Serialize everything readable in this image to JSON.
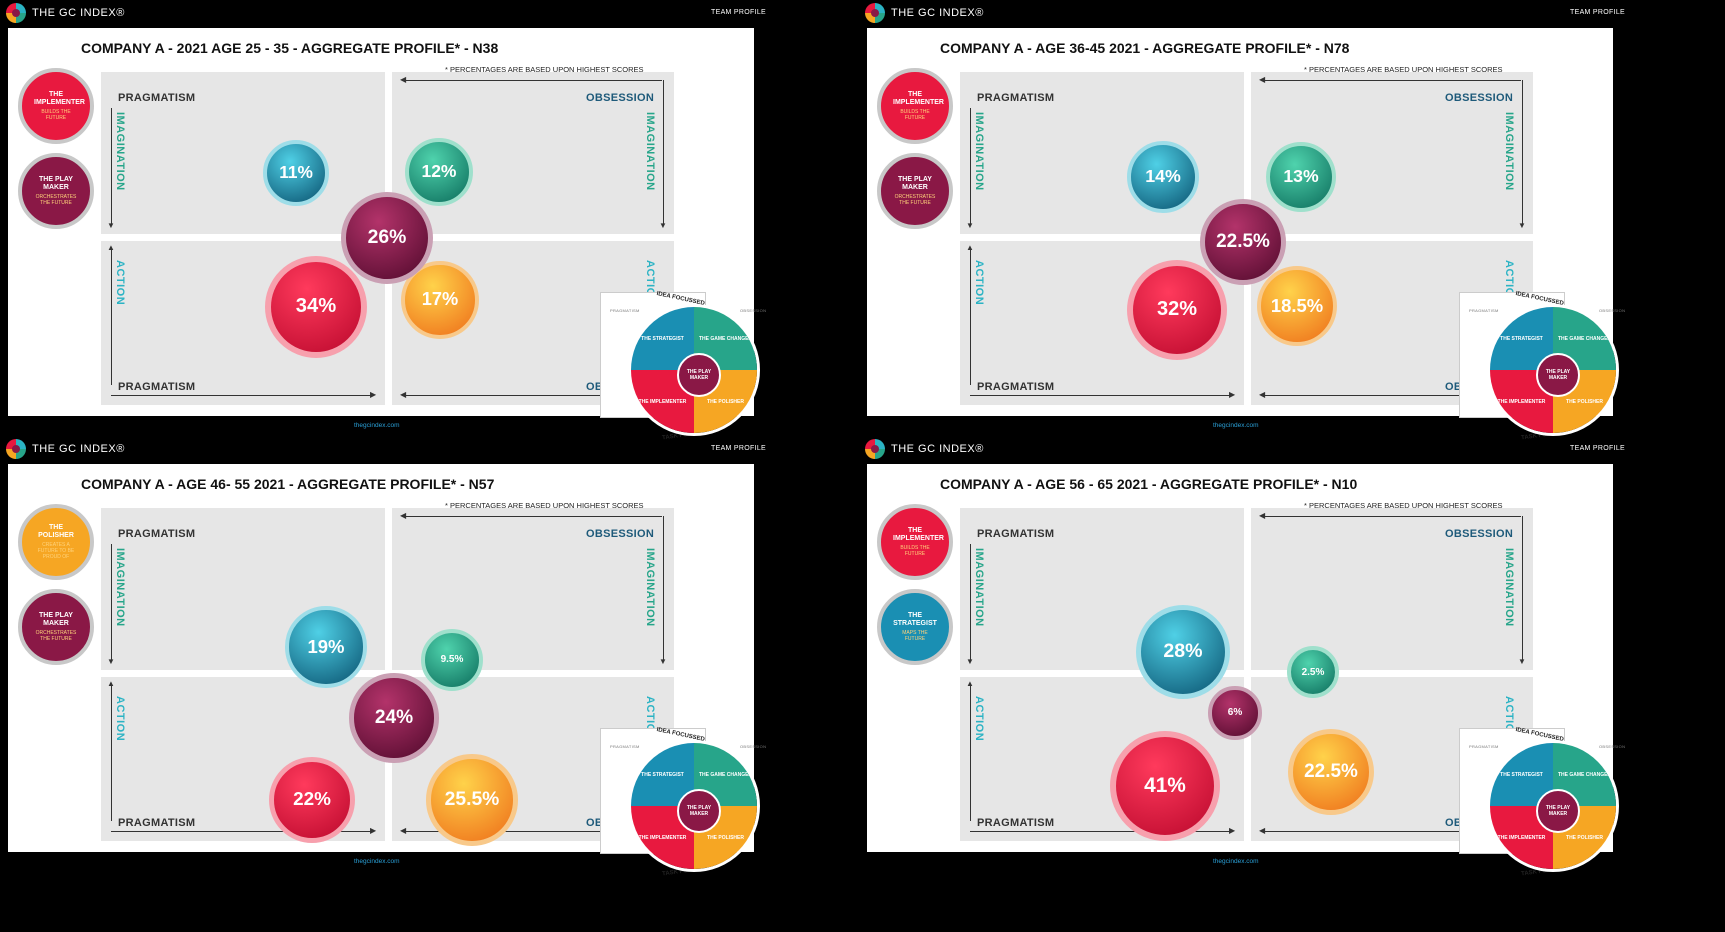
{
  "colors": {
    "implementer": "#e8193f",
    "playmaker": "#8a1846",
    "strategist": "#1a8fb3",
    "gamechanger": "#27a58a",
    "polisher": "#f6a623"
  },
  "common": {
    "logo_text": "THE GC INDEX®",
    "header_right": "TEAM PROFILE",
    "note": "* PERCENTAGES ARE BASED UPON HIGHEST SCORES",
    "footer": "thegcindex.com",
    "q_pragmatism": "PRAGMATISM",
    "q_obsession": "OBSESSION",
    "q_imagination": "IMAGINATION",
    "q_action": "ACTION",
    "wheel_top": "IDEA FOCUSSED",
    "wheel_bottom": "TASK FOCUSSED",
    "wheel_side": "PRAGMATISM",
    "wheel_side2": "OBSESSION",
    "wheel_strategist": "THE STRATEGIST",
    "wheel_gamechanger": "THE GAME CHANGER",
    "wheel_implementer": "THE IMPLEMENTER",
    "wheel_polisher": "THE POLISHER",
    "wheel_playmaker": "THE PLAY MAKER"
  },
  "slides": [
    {
      "title": "COMPANY A -  2021 AGE 25 - 35  - AGGREGATE PROFILE* - N38",
      "legend": [
        {
          "name": "THE IMPLEMENTER",
          "tag": "BUILDS THE FUTURE",
          "profile": "implementer"
        },
        {
          "name": "THE PLAY MAKER",
          "tag": "ORCHESTRATES THE FUTURE",
          "profile": "playmaker"
        }
      ],
      "bubbles": {
        "strategist": "11%",
        "gamechanger": "12%",
        "playmaker": "26%",
        "implementer": "34%",
        "polisher": "17%"
      },
      "values": {
        "strategist": 11,
        "gamechanger": 12,
        "playmaker": 26,
        "implementer": 34,
        "polisher": 17
      }
    },
    {
      "title": "COMPANY A -  AGE 36-45 2021  - AGGREGATE PROFILE* - N78",
      "legend": [
        {
          "name": "THE IMPLEMENTER",
          "tag": "BUILDS THE FUTURE",
          "profile": "implementer"
        },
        {
          "name": "THE PLAY MAKER",
          "tag": "ORCHESTRATES THE FUTURE",
          "profile": "playmaker"
        }
      ],
      "bubbles": {
        "strategist": "14%",
        "gamechanger": "13%",
        "playmaker": "22.5%",
        "implementer": "32%",
        "polisher": "18.5%"
      },
      "values": {
        "strategist": 14,
        "gamechanger": 13,
        "playmaker": 22.5,
        "implementer": 32,
        "polisher": 18.5
      }
    },
    {
      "title": "COMPANY A - AGE 46- 55 2021  - AGGREGATE PROFILE* - N57",
      "legend": [
        {
          "name": "THE POLISHER",
          "tag": "CREATES A FUTURE TO BE PROUD OF",
          "profile": "polisher"
        },
        {
          "name": "THE PLAY MAKER",
          "tag": "ORCHESTRATES THE FUTURE",
          "profile": "playmaker"
        }
      ],
      "bubbles": {
        "strategist": "19%",
        "gamechanger": "9.5%",
        "playmaker": "24%",
        "implementer": "22%",
        "polisher": "25.5%"
      },
      "values": {
        "strategist": 19,
        "gamechanger": 9.5,
        "playmaker": 24,
        "implementer": 22,
        "polisher": 25.5
      }
    },
    {
      "title": "COMPANY A -  AGE 56 - 65 2021  - AGGREGATE PROFILE* - N10",
      "legend": [
        {
          "name": "THE IMPLEMENTER",
          "tag": "BUILDS THE FUTURE",
          "profile": "implementer"
        },
        {
          "name": "THE STRATEGIST",
          "tag": "MAPS THE FUTURE",
          "profile": "strategist"
        }
      ],
      "bubbles": {
        "strategist": "28%",
        "gamechanger": "2.5%",
        "playmaker": "6%",
        "implementer": "41%",
        "polisher": "22.5%"
      },
      "values": {
        "strategist": 28,
        "gamechanger": 2.5,
        "playmaker": 6,
        "implementer": 41,
        "polisher": 22.5
      }
    }
  ]
}
